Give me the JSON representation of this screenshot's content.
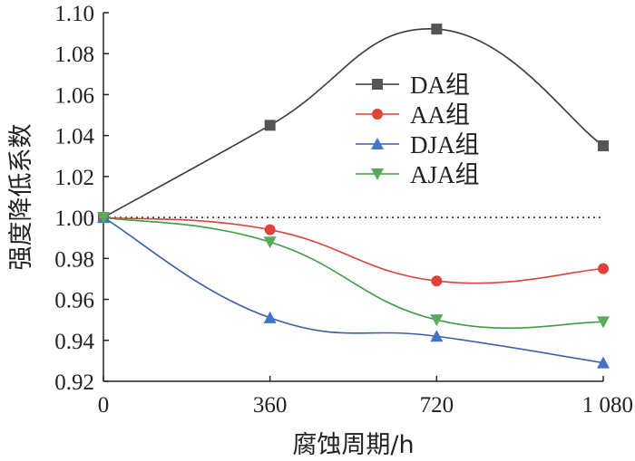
{
  "chart_data": {
    "type": "line",
    "xlabel": "腐蚀周期/h",
    "ylabel": "强度降低系数",
    "x": [
      0,
      360,
      720,
      1080
    ],
    "x_tick_labels": [
      "0",
      "360",
      "720",
      "1 080"
    ],
    "xlim": [
      0,
      1080
    ],
    "ylim": [
      0.92,
      1.1
    ],
    "y_ticks": [
      0.92,
      0.94,
      0.96,
      0.98,
      1.0,
      1.02,
      1.04,
      1.06,
      1.08,
      1.1
    ],
    "y_tick_labels": [
      "0.92",
      "0.94",
      "0.96",
      "0.98",
      "1.00",
      "1.02",
      "1.04",
      "1.06",
      "1.08",
      "1.10"
    ],
    "reference_line": 1.0,
    "grid": false,
    "legend_position": "top-right",
    "series": [
      {
        "name": "DA组",
        "values": [
          1.0,
          1.045,
          1.092,
          1.035
        ],
        "color": "#555555",
        "line_color": "#3a3a3a",
        "marker": "square"
      },
      {
        "name": "AA组",
        "values": [
          1.0,
          0.994,
          0.969,
          0.975
        ],
        "color": "#e0413a",
        "line_color": "#d6453c",
        "marker": "circle"
      },
      {
        "name": "DJA组",
        "values": [
          1.0,
          0.951,
          0.942,
          0.929
        ],
        "color": "#4472c4",
        "line_color": "#3d5ea8",
        "marker": "triangle-up"
      },
      {
        "name": "AJA组",
        "values": [
          1.0,
          0.988,
          0.95,
          0.949
        ],
        "color": "#5aaa5a",
        "line_color": "#3e9a48",
        "marker": "triangle-down"
      }
    ]
  }
}
